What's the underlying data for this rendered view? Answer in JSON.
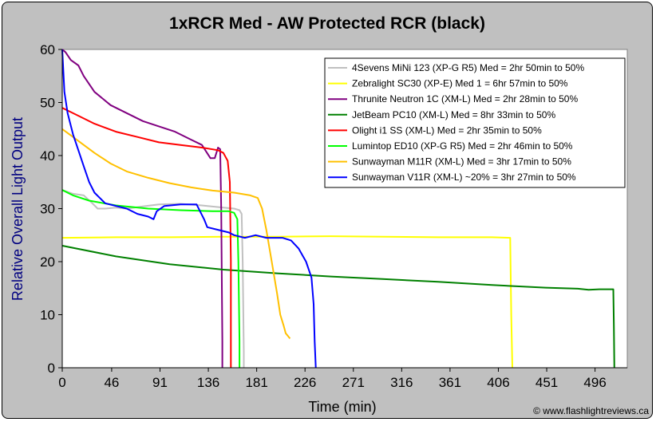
{
  "chart_data": {
    "type": "line",
    "title": "1xRCR Med - AW Protected RCR (black)",
    "xlabel": "Time (min)",
    "ylabel": "Relative Overall Light Output",
    "xlim": [
      0,
      526
    ],
    "ylim": [
      0,
      60
    ],
    "x_ticks": [
      "0",
      "46",
      "91",
      "136",
      "181",
      "226",
      "271",
      "316",
      "361",
      "406",
      "451",
      "496"
    ],
    "y_ticks": [
      "0",
      "10",
      "20",
      "30",
      "40",
      "50",
      "60"
    ],
    "legend_position": "top-right",
    "grid": false,
    "credit": "© www.flashlightreviews.ca",
    "series": [
      {
        "name": "4Sevens MiNi 123 (XP-G R5) Med = 2hr 50min to 50%",
        "color": "#c0c0c0",
        "points": [
          [
            0,
            33.5
          ],
          [
            10,
            32.8
          ],
          [
            20,
            32.5
          ],
          [
            28,
            31
          ],
          [
            33,
            30
          ],
          [
            40,
            30
          ],
          [
            50,
            30.2
          ],
          [
            60,
            30
          ],
          [
            75,
            30.4
          ],
          [
            90,
            30.8
          ],
          [
            110,
            30.9
          ],
          [
            130,
            30.6
          ],
          [
            150,
            30.2
          ],
          [
            160,
            30
          ],
          [
            165,
            29.7
          ],
          [
            167,
            29
          ],
          [
            168,
            20
          ],
          [
            169,
            3
          ],
          [
            169,
            0
          ]
        ]
      },
      {
        "name": "Zebralight SC30 (XP-E) Med 1 = 6hr 57min to 50%",
        "color": "#ffff00",
        "points": [
          [
            0,
            24.5
          ],
          [
            50,
            24.6
          ],
          [
            100,
            24.6
          ],
          [
            150,
            24.7
          ],
          [
            200,
            24.7
          ],
          [
            250,
            24.8
          ],
          [
            300,
            24.7
          ],
          [
            350,
            24.6
          ],
          [
            400,
            24.6
          ],
          [
            417,
            24.5
          ],
          [
            418,
            10
          ],
          [
            419,
            0
          ]
        ]
      },
      {
        "name": "Thrunite Neutron 1C (XM-L) Med = 2hr 28min to 50%",
        "color": "#800080",
        "points": [
          [
            0,
            60
          ],
          [
            3,
            59.5
          ],
          [
            8,
            58
          ],
          [
            15,
            57
          ],
          [
            20,
            55
          ],
          [
            30,
            52
          ],
          [
            45,
            49.5
          ],
          [
            60,
            48
          ],
          [
            75,
            46.5
          ],
          [
            90,
            45.5
          ],
          [
            105,
            44.5
          ],
          [
            120,
            43
          ],
          [
            130,
            42
          ],
          [
            138,
            39.5
          ],
          [
            142,
            39.5
          ],
          [
            145,
            41.5
          ],
          [
            147,
            41.2
          ],
          [
            148,
            30
          ],
          [
            149,
            5
          ],
          [
            149,
            0
          ]
        ]
      },
      {
        "name": "JetBeam PC10 (XM-L) Med = 8hr 33min to 50%",
        "color": "#008000",
        "points": [
          [
            0,
            23
          ],
          [
            50,
            21
          ],
          [
            100,
            19.5
          ],
          [
            150,
            18.5
          ],
          [
            200,
            17.8
          ],
          [
            250,
            17.2
          ],
          [
            300,
            16.7
          ],
          [
            350,
            16.2
          ],
          [
            400,
            15.6
          ],
          [
            450,
            15.1
          ],
          [
            480,
            14.9
          ],
          [
            490,
            14.7
          ],
          [
            500,
            14.8
          ],
          [
            513,
            14.8
          ],
          [
            513.5,
            8
          ],
          [
            514,
            0
          ]
        ]
      },
      {
        "name": "Olight i1 SS (XM-L) Med = 2hr 35min to 50%",
        "color": "#ff0000",
        "points": [
          [
            0,
            49
          ],
          [
            5,
            48.5
          ],
          [
            15,
            47.5
          ],
          [
            30,
            46
          ],
          [
            50,
            44.5
          ],
          [
            70,
            43.5
          ],
          [
            90,
            42.5
          ],
          [
            110,
            42
          ],
          [
            130,
            41.5
          ],
          [
            145,
            41
          ],
          [
            150,
            40.5
          ],
          [
            154,
            39
          ],
          [
            156,
            35
          ],
          [
            157,
            20
          ],
          [
            157,
            0
          ]
        ]
      },
      {
        "name": "Lumintop ED10 (XP-G R5) Med = 2hr 46min to 50%",
        "color": "#00ff00",
        "points": [
          [
            0,
            33.5
          ],
          [
            10,
            32.5
          ],
          [
            25,
            31.5
          ],
          [
            50,
            30.6
          ],
          [
            80,
            30
          ],
          [
            110,
            29.7
          ],
          [
            140,
            29.5
          ],
          [
            155,
            29.5
          ],
          [
            160,
            29.2
          ],
          [
            163,
            28
          ],
          [
            164,
            20
          ],
          [
            165,
            5
          ],
          [
            165,
            0
          ]
        ]
      },
      {
        "name": "Sunwayman M11R (XM-L) Med = 3hr 17min to 50%",
        "color": "#ffc000",
        "points": [
          [
            0,
            45
          ],
          [
            10,
            43.5
          ],
          [
            20,
            42
          ],
          [
            30,
            40.5
          ],
          [
            45,
            38.5
          ],
          [
            60,
            37
          ],
          [
            80,
            35.8
          ],
          [
            100,
            34.8
          ],
          [
            120,
            34
          ],
          [
            140,
            33.4
          ],
          [
            160,
            33
          ],
          [
            175,
            32.5
          ],
          [
            182,
            32
          ],
          [
            186,
            30
          ],
          [
            190,
            26
          ],
          [
            195,
            20
          ],
          [
            200,
            14
          ],
          [
            203,
            10
          ],
          [
            206,
            8
          ],
          [
            208,
            6.5
          ],
          [
            212,
            5.5
          ]
        ]
      },
      {
        "name": "Sunwayman V11R (XM-L) ~20% = 3hr 27min to 50%",
        "color": "#0000ff",
        "points": [
          [
            0,
            60
          ],
          [
            2,
            52
          ],
          [
            5,
            48
          ],
          [
            10,
            44
          ],
          [
            15,
            41
          ],
          [
            20,
            38
          ],
          [
            25,
            35
          ],
          [
            30,
            33
          ],
          [
            35,
            32
          ],
          [
            40,
            31
          ],
          [
            50,
            30.5
          ],
          [
            60,
            30
          ],
          [
            70,
            29
          ],
          [
            80,
            28.5
          ],
          [
            85,
            28
          ],
          [
            88,
            29.5
          ],
          [
            95,
            30.5
          ],
          [
            110,
            30.8
          ],
          [
            125,
            30.8
          ],
          [
            132,
            28
          ],
          [
            135,
            26.5
          ],
          [
            145,
            26
          ],
          [
            155,
            25.5
          ],
          [
            160,
            25
          ],
          [
            170,
            24.5
          ],
          [
            180,
            25
          ],
          [
            190,
            24.5
          ],
          [
            205,
            24.5
          ],
          [
            213,
            24
          ],
          [
            220,
            22.5
          ],
          [
            227,
            20
          ],
          [
            232,
            17
          ],
          [
            234,
            12
          ],
          [
            235,
            5
          ],
          [
            236,
            0
          ]
        ]
      }
    ]
  }
}
